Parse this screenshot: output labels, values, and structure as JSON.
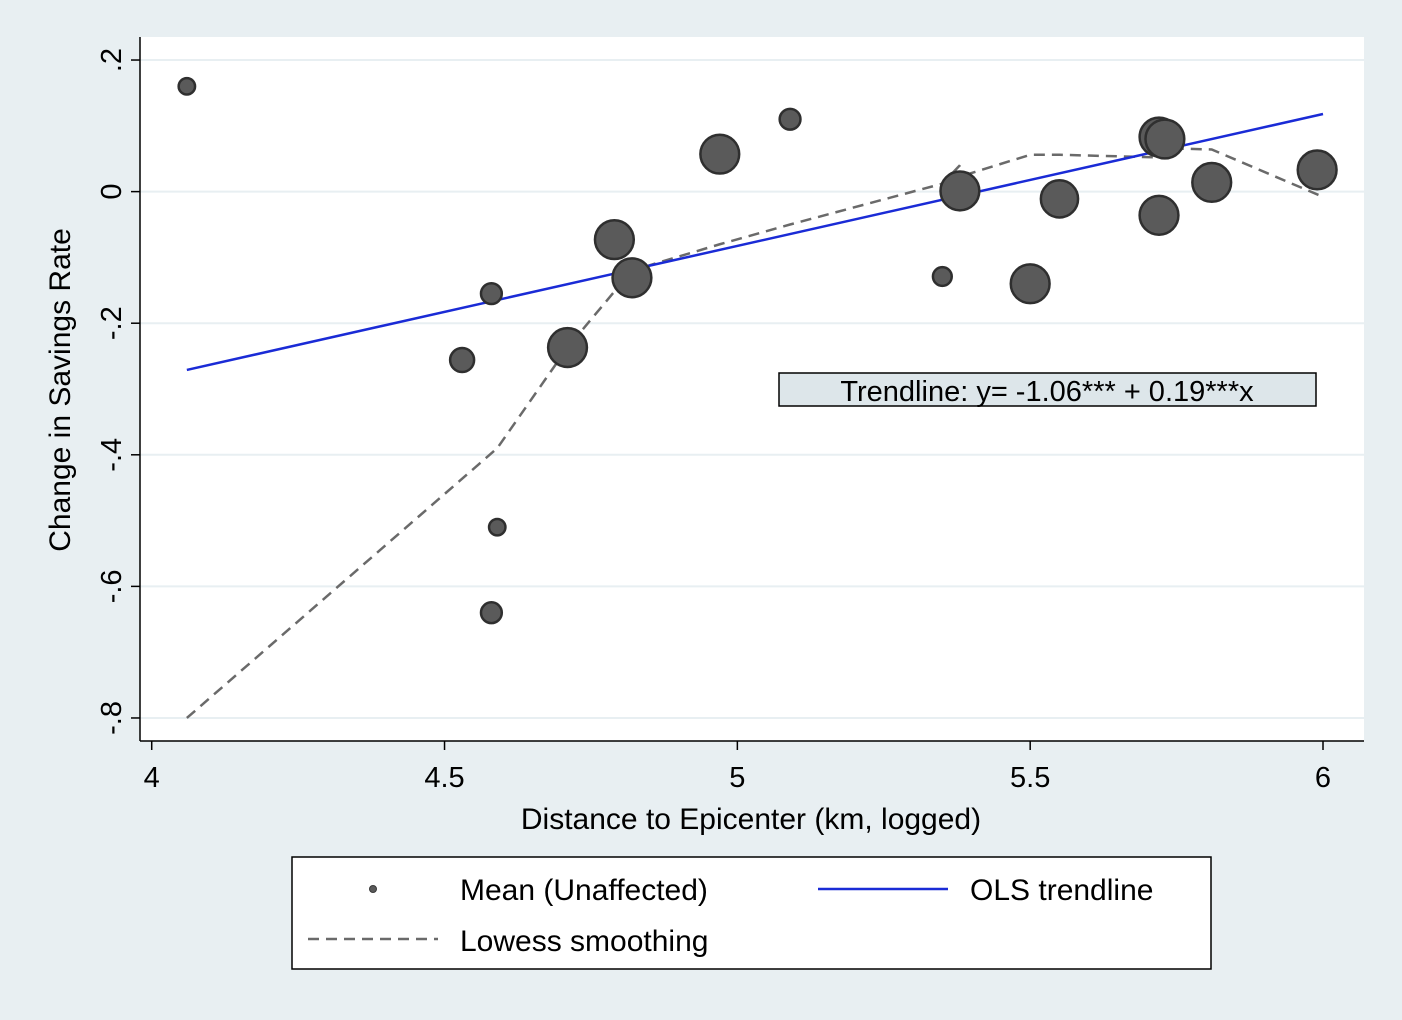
{
  "chart_data": {
    "type": "scatter",
    "xlabel": "Distance to Epicenter (km, logged)",
    "ylabel": "Change in Savings Rate",
    "xlim": [
      3.98,
      6.07
    ],
    "ylim": [
      -0.835,
      0.235
    ],
    "xticks": [
      {
        "value": 4,
        "label": "4"
      },
      {
        "value": 4.5,
        "label": "4.5"
      },
      {
        "value": 5,
        "label": "5"
      },
      {
        "value": 5.5,
        "label": "5.5"
      },
      {
        "value": 6,
        "label": "6"
      }
    ],
    "yticks": [
      {
        "value": 0.2,
        "label": ".2"
      },
      {
        "value": 0,
        "label": "0"
      },
      {
        "value": -0.2,
        "label": "-.2"
      },
      {
        "value": -0.4,
        "label": "-.4"
      },
      {
        "value": -0.6,
        "label": "-.6"
      },
      {
        "value": -0.8,
        "label": "-.8"
      }
    ],
    "grid": true,
    "series": [
      {
        "name": "Mean (Unaffected)",
        "kind": "scatter",
        "color": "#5a5a5a",
        "points": [
          {
            "x": 4.06,
            "y": 0.16,
            "w": 1
          },
          {
            "x": 4.53,
            "y": -0.256,
            "w": 3
          },
          {
            "x": 4.58,
            "y": -0.155,
            "w": 2
          },
          {
            "x": 4.59,
            "y": -0.51,
            "w": 1
          },
          {
            "x": 4.58,
            "y": -0.64,
            "w": 2
          },
          {
            "x": 4.71,
            "y": -0.237,
            "w": 10
          },
          {
            "x": 4.79,
            "y": -0.073,
            "w": 10
          },
          {
            "x": 4.82,
            "y": -0.131,
            "w": 10
          },
          {
            "x": 4.97,
            "y": 0.057,
            "w": 10
          },
          {
            "x": 5.09,
            "y": 0.11,
            "w": 2
          },
          {
            "x": 5.35,
            "y": -0.129,
            "w": 1.5
          },
          {
            "x": 5.38,
            "y": 0.001,
            "w": 10
          },
          {
            "x": 5.5,
            "y": -0.14,
            "w": 10
          },
          {
            "x": 5.55,
            "y": -0.011,
            "w": 9
          },
          {
            "x": 5.72,
            "y": -0.036,
            "w": 10
          },
          {
            "x": 5.72,
            "y": 0.083,
            "w": 10
          },
          {
            "x": 5.73,
            "y": 0.08,
            "w": 10
          },
          {
            "x": 5.81,
            "y": 0.014,
            "w": 10
          },
          {
            "x": 5.99,
            "y": 0.033,
            "w": 10
          }
        ]
      },
      {
        "name": "OLS trendline",
        "kind": "line",
        "color": "#1a2bd6",
        "points": [
          {
            "x": 4.06,
            "y": -0.271
          },
          {
            "x": 6.0,
            "y": 0.118
          }
        ]
      },
      {
        "name": "Lowess smoothing",
        "kind": "dashed-line",
        "color": "#6a6a6a",
        "points": [
          {
            "x": 4.06,
            "y": -0.8
          },
          {
            "x": 4.59,
            "y": -0.39
          },
          {
            "x": 4.71,
            "y": -0.237
          },
          {
            "x": 4.82,
            "y": -0.12
          },
          {
            "x": 4.97,
            "y": -0.08
          },
          {
            "x": 5.09,
            "y": -0.05
          },
          {
            "x": 5.35,
            "y": 0.012
          },
          {
            "x": 5.38,
            "y": 0.04
          },
          {
            "x": 5.37,
            "y": 0.02
          },
          {
            "x": 5.5,
            "y": 0.056
          },
          {
            "x": 5.55,
            "y": 0.056
          },
          {
            "x": 5.72,
            "y": 0.052
          },
          {
            "x": 5.73,
            "y": 0.066
          },
          {
            "x": 5.81,
            "y": 0.064
          },
          {
            "x": 6.0,
            "y": -0.008
          }
        ]
      }
    ],
    "annotation": "Trendline: y= -1.06*** + 0.19***x",
    "legend": {
      "position": "bottom",
      "items": [
        {
          "label": "Mean (Unaffected)",
          "symbol": "dot"
        },
        {
          "label": "OLS trendline",
          "symbol": "line"
        },
        {
          "label": "Lowess smoothing",
          "symbol": "dash"
        }
      ]
    },
    "colors": {
      "background": "#e8eff2",
      "plot_background": "#ffffff",
      "grid": "#e8eff2",
      "annotation_box": "#dde6ea"
    }
  }
}
